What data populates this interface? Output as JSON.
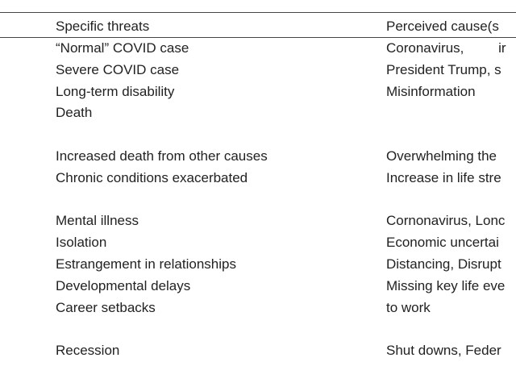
{
  "table": {
    "header": [
      "Specific threats",
      "Perceived cause(s"
    ],
    "groups": [
      [
        {
          "threat": "“Normal” COVID case",
          "cause": "Coronavirus, ir"
        },
        {
          "threat": "Severe COVID case",
          "cause": "President Trump, s"
        },
        {
          "threat": "Long-term disability",
          "cause": "Misinformation"
        },
        {
          "threat": "Death"
        }
      ],
      [
        {
          "threat": "Increased death from other causes",
          "cause": "Overwhelming the"
        },
        {
          "threat": "Chronic conditions exacerbated",
          "cause": "Increase in life stre"
        }
      ],
      [
        {
          "threat": "Mental illness",
          "cause": "Cornonavirus, Lonc"
        },
        {
          "threat": "Isolation",
          "cause": "Economic uncertai"
        },
        {
          "threat": "Estrangement in relationships",
          "cause": "Distancing, Disrupt"
        },
        {
          "threat": "Developmental delays",
          "cause": "Missing key life eve"
        },
        {
          "threat": "Career setbacks",
          "cause": "to work"
        }
      ],
      [
        {
          "threat": "Recession",
          "cause": "Shut downs, Feder"
        }
      ]
    ]
  }
}
